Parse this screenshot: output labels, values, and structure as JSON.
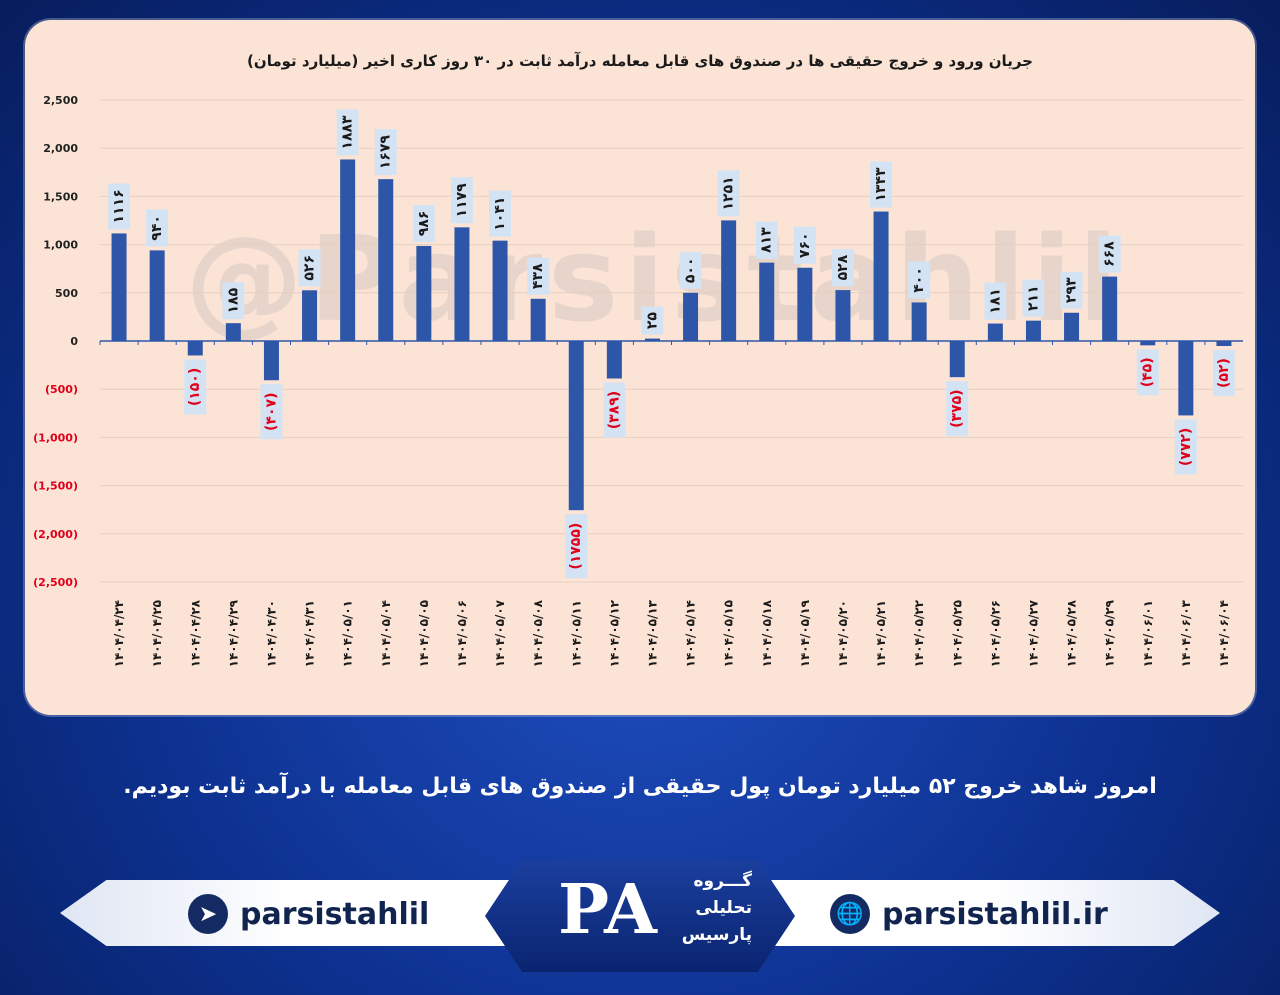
{
  "chart_data": {
    "type": "bar",
    "title": "جریان ورود و خروج حقیقی ها در صندوق های قابل معامله درآمد ثابت در ۳۰ روز کاری اخیر (میلیارد تومان)",
    "categories": [
      "۱۴۰۴/۰۴/۲۴",
      "۱۴۰۴/۰۴/۲۵",
      "۱۴۰۴/۰۴/۲۸",
      "۱۴۰۴/۰۴/۲۹",
      "۱۴۰۴/۰۴/۳۰",
      "۱۴۰۴/۰۴/۳۱",
      "۱۴۰۴/۰۵/۰۱",
      "۱۴۰۴/۰۵/۰۴",
      "۱۴۰۴/۰۵/۰۵",
      "۱۴۰۴/۰۵/۰۶",
      "۱۴۰۴/۰۵/۰۷",
      "۱۴۰۴/۰۵/۰۸",
      "۱۴۰۴/۰۵/۱۱",
      "۱۴۰۴/۰۵/۱۲",
      "۱۴۰۴/۰۵/۱۳",
      "۱۴۰۴/۰۵/۱۴",
      "۱۴۰۴/۰۵/۱۵",
      "۱۴۰۴/۰۵/۱۸",
      "۱۴۰۴/۰۵/۱۹",
      "۱۴۰۴/۰۵/۲۰",
      "۱۴۰۴/۰۵/۲۱",
      "۱۴۰۴/۰۵/۲۲",
      "۱۴۰۴/۰۵/۲۵",
      "۱۴۰۴/۰۵/۲۶",
      "۱۴۰۴/۰۵/۲۷",
      "۱۴۰۴/۰۵/۲۸",
      "۱۴۰۴/۰۵/۲۹",
      "۱۴۰۴/۰۶/۰۱",
      "۱۴۰۴/۰۶/۰۳",
      "۱۴۰۴/۰۶/۰۴"
    ],
    "values": [
      1116,
      940,
      -150,
      185,
      -407,
      526,
      1883,
      1679,
      986,
      1179,
      1041,
      438,
      -1755,
      -389,
      25,
      500,
      1251,
      813,
      760,
      528,
      1343,
      400,
      -375,
      181,
      211,
      293,
      668,
      -45,
      -772,
      -52
    ],
    "value_labels": [
      "۱۱۱۶",
      "۹۴۰",
      "(۱۵۰)",
      "۱۸۵",
      "(۴۰۷)",
      "۵۲۶",
      "۱۸۸۳",
      "۱۶۷۹",
      "۹۸۶",
      "۱۱۷۹",
      "۱۰۴۱",
      "۴۳۸",
      "(۱۷۵۵)",
      "(۳۸۹)",
      "۲۵",
      "۵۰۰",
      "۱۲۵۱",
      "۸۱۳",
      "۷۶۰",
      "۵۲۸",
      "۱۳۴۳",
      "۴۰۰",
      "(۳۷۵)",
      "۱۸۱",
      "۲۱۱",
      "۲۹۳",
      "۶۶۸",
      "(۴۵)",
      "(۷۷۲)",
      "(۵۲)"
    ],
    "yticks": [
      2500,
      2000,
      1500,
      1000,
      500,
      0,
      -500,
      -1000,
      -1500,
      -2000,
      -2500
    ],
    "ytick_labels": [
      "2,500",
      "2,000",
      "1,500",
      "1,000",
      "500",
      "0",
      "(500)",
      "(1,000)",
      "(1,500)",
      "(2,000)",
      "(2,500)"
    ],
    "ylim": [
      -2500,
      2500
    ],
    "grid": true,
    "colors": {
      "bar": "#2e56a8",
      "negative_text": "#e0001b",
      "positive_text": "#1a1a1a",
      "label_box": "#d4e3f4"
    }
  },
  "watermark": "@Parsistahlil",
  "caption": "امروز شاهد خروج ۵۲ میلیارد تومان پول حقیقی از صندوق های قابل معامله با درآمد ثابت بودیم.",
  "footer": {
    "telegram_label": "parsistahlil",
    "telegram_icon": "telegram-icon",
    "web_label": "parsistahlil.ir",
    "web_icon": "globe-icon",
    "logo_mark": "PA",
    "logo_line1": "گـــروه",
    "logo_line2": "تحلیلی",
    "logo_line3": "پارسیس"
  }
}
